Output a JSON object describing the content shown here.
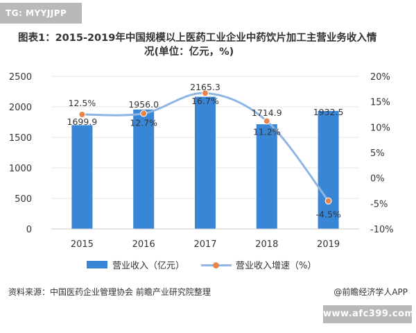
{
  "tag": "TG: MYYJJPP",
  "title_line1": "图表1：2015-2019年中国规模以上医药工业企业中药饮片加工主营业务收入情",
  "title_line2": "况(单位：亿元，%)",
  "source": "资料来源：中国医药企业管理协会 前瞻产业研究院整理",
  "credit": "@前瞻经济学人APP",
  "url_badge": "www.afc399.com",
  "colors": {
    "bar": "#3a86d6",
    "line": "#8fb5e3",
    "marker": "#e8854a",
    "grid": "#e5e5e5",
    "text": "#333333"
  },
  "chart_data": {
    "type": "bar",
    "categories": [
      "2015",
      "2016",
      "2017",
      "2018",
      "2019"
    ],
    "series": [
      {
        "name": "营业收入（亿元）",
        "type": "bar",
        "axis": "left",
        "values": [
          1699.9,
          1956.0,
          2165.3,
          1714.9,
          1932.5
        ],
        "labels": [
          "1699.9",
          "1956.0",
          "2165.3",
          "1714.9",
          "1932.5"
        ]
      },
      {
        "name": "营业收入增速（%）",
        "type": "line",
        "axis": "right",
        "values": [
          12.5,
          12.7,
          16.7,
          11.2,
          -4.5
        ],
        "labels": [
          "12.5%",
          "12.7%",
          "16.7%",
          "11.2%",
          "-4.5%"
        ]
      }
    ],
    "y_left": {
      "min": 0,
      "max": 2500,
      "ticks": [
        "0",
        "500",
        "1000",
        "1500",
        "2000",
        "2500"
      ]
    },
    "y_right": {
      "min": -10,
      "max": 20,
      "ticks": [
        "-10%",
        "-5%",
        "0%",
        "5%",
        "10%",
        "15%",
        "20%"
      ]
    },
    "grid": true,
    "legend_position": "bottom"
  }
}
